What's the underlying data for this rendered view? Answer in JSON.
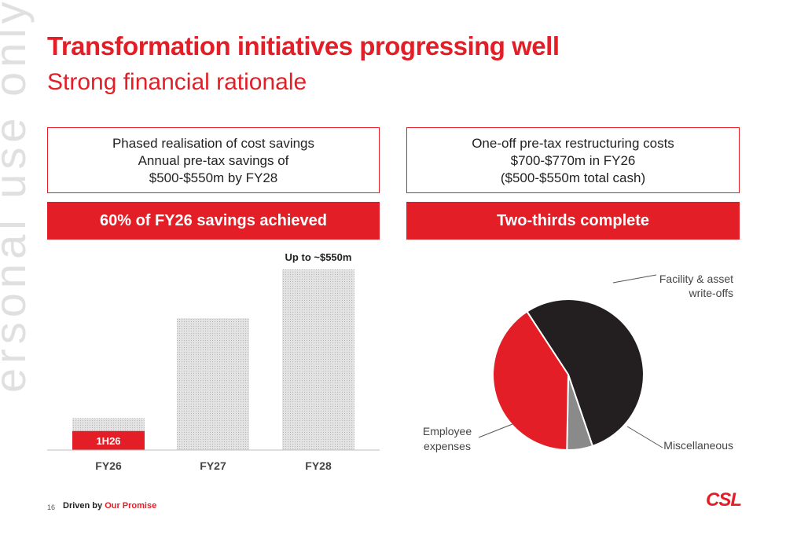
{
  "slide": {
    "title": "Transformation initiatives progressing well",
    "subtitle": "Strong financial rationale",
    "watermark": "ersonal use only"
  },
  "left_panel": {
    "box_lines": [
      "Phased realisation of cost savings",
      "Annual pre-tax savings of",
      "$500-$550m by FY28"
    ],
    "band_label": "60% of FY26 savings achieved"
  },
  "right_panel": {
    "box_lines": [
      "One-off pre-tax restructuring costs",
      "$700-$770m in FY26",
      "($500-$550m total cash)"
    ],
    "band_label": "Two-thirds complete"
  },
  "footer": {
    "page_number": "16",
    "tagline_prefix": "Driven by ",
    "tagline_highlight": "Our Promise",
    "logo": "CSL"
  },
  "colors": {
    "accent": "#e41e26",
    "dark": "#231f20",
    "grey": "#8a8a8a",
    "bar_fill": "#d9d9d9"
  },
  "chart_data": [
    {
      "type": "bar",
      "categories": [
        "FY26",
        "FY27",
        "FY28"
      ],
      "values": [
        74,
        305,
        418
      ],
      "achieved": [
        {
          "category": "FY26",
          "label": "1H26",
          "value": 44
        }
      ],
      "annotation": {
        "category": "FY28",
        "text": "Up to ~$550m"
      },
      "ylim": [
        0,
        418
      ]
    },
    {
      "type": "pie",
      "slices": [
        {
          "label": "Facility & asset write-offs",
          "value": 54,
          "color": "#231f20"
        },
        {
          "label": "Miscellaneous",
          "value": 5.5,
          "color": "#8a8a8a"
        },
        {
          "label": "Employee expenses",
          "value": 40.5,
          "color": "#e41e26"
        }
      ]
    }
  ]
}
